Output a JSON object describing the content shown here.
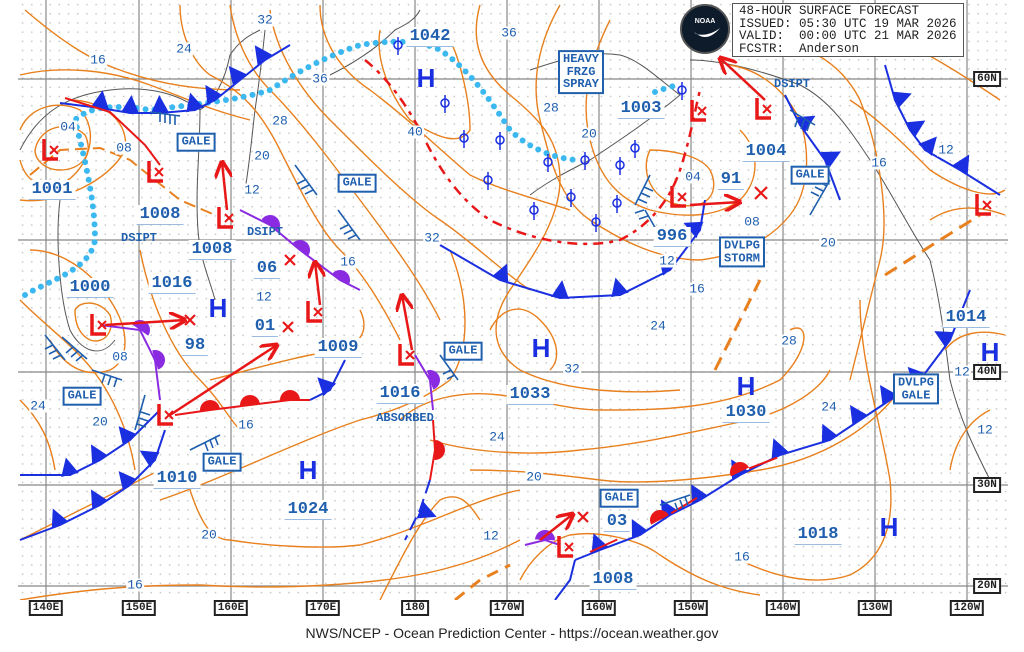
{
  "header": {
    "line1": "48-HOUR SURFACE FORECAST",
    "line2": "ISSUED: 05:30 UTC 19 MAR 2026",
    "line3": "VALID:  00:00 UTC 21 MAR 2026",
    "line4": "FCSTR:  Anderson",
    "logo_text": "NOAA"
  },
  "footer": "NWS/NCEP - Ocean Prediction Center - https://ocean.weather.gov",
  "longitude_labels": [
    "140E",
    "150E",
    "160E",
    "170E",
    "180",
    "170W",
    "160W",
    "150W",
    "140W",
    "130W",
    "120W"
  ],
  "latitude_labels": [
    "60N",
    "40N",
    "30N",
    "20N"
  ],
  "pressure_labels": [
    "1042",
    "1001",
    "1008",
    "1008",
    "1000",
    "1016",
    "06",
    "01",
    "98",
    "1009",
    "1016",
    "1010",
    "1024",
    "1033",
    "1030",
    "1018",
    "1003",
    "1004",
    "91",
    "996",
    "03",
    "1008",
    "1014"
  ],
  "high_symbol": "H",
  "isobar_labels": [
    "16",
    "24",
    "32",
    "36",
    "36",
    "28",
    "40",
    "20",
    "12",
    "04",
    "08",
    "16",
    "32",
    "12",
    "08",
    "24",
    "20",
    "16",
    "20",
    "16",
    "12",
    "20",
    "24",
    "32",
    "24",
    "16",
    "12",
    "04",
    "08",
    "28",
    "20",
    "16",
    "12",
    "20",
    "28",
    "24",
    "12",
    "12",
    "16"
  ],
  "warnings": [
    "GALE",
    "GALE",
    "HEAVY\nFRZG\nSPRAY",
    "DSIPT",
    "GALE",
    "DVLPG\nSTORM",
    "GALE",
    "GALE",
    "GALE",
    "DVLPG\nGALE",
    "GALE"
  ],
  "plain_notes": [
    "DSIPT",
    "DSIPT",
    "ABSORBED"
  ],
  "colors": {
    "isobar": "#e8801e",
    "cold_front": "#1a2fe0",
    "warm_front": "#e81818",
    "occluded_front": "#8a2be2",
    "ice_edge": "#3bb8f0",
    "text": "#1f5fae"
  },
  "icons": [
    "low-pressure-icon",
    "high-pressure-icon",
    "storm-track-arrow-icon",
    "forecast-position-x-icon",
    "wind-barb-icon",
    "freezing-spray-icon",
    "noaa-logo-icon"
  ]
}
